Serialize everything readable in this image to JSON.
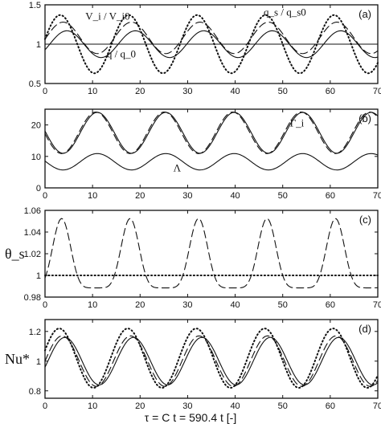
{
  "figure": {
    "xlabel": "τ = C t = 590.4 t [-]"
  },
  "chart_data": [
    {
      "type": "line",
      "panel_tag": "(a)",
      "xlim": [
        0,
        70
      ],
      "ylim": [
        0.5,
        1.5
      ],
      "xticks": [
        0,
        10,
        20,
        30,
        40,
        50,
        60,
        70
      ],
      "yticks": [
        0.5,
        1,
        1.5
      ],
      "ylabel": "",
      "period": 14.4,
      "series": [
        {
          "label": "V_i / V_i0",
          "style": "dotted",
          "mean": 1.0,
          "amp": 0.37,
          "peak_at": 3.2,
          "note_x": 8.5,
          "note_y": 1.31
        },
        {
          "label": "q / q_0",
          "style": "solid",
          "mean": 1.0,
          "amp": 0.17,
          "peak_at": 4.6,
          "note_x": 13,
          "note_y": 0.83
        },
        {
          "label": "q_s / q_s0",
          "style": "dashed",
          "mean": 1.08,
          "amp": 0.2,
          "peak_at": 3.8,
          "note_x": 46,
          "note_y": 1.36
        },
        {
          "label": "",
          "style": "solid",
          "constant": 1.0
        }
      ]
    },
    {
      "type": "line",
      "panel_tag": "(b)",
      "xlim": [
        0,
        70
      ],
      "ylim": [
        0,
        25
      ],
      "xticks": [
        0,
        10,
        20,
        30,
        40,
        50,
        60,
        70
      ],
      "yticks": [
        0,
        10,
        20
      ],
      "ylabel": "",
      "period": 14.4,
      "series": [
        {
          "label": "Γ_i",
          "style": "solid",
          "mean": 17.5,
          "amp": 6.5,
          "peak_at": 11.0,
          "note_x": 51.5,
          "note_y": 19.5
        },
        {
          "label": "",
          "style": "dashed",
          "mean": 17.5,
          "amp": 6.6,
          "peak_at": 10.7
        },
        {
          "label": "Λ",
          "style": "solid",
          "mean": 8.3,
          "amp": 2.6,
          "peak_at": 11.0,
          "note_x": 27,
          "note_y": 5.2
        }
      ]
    },
    {
      "type": "line",
      "panel_tag": "(c)",
      "xlim": [
        0,
        70
      ],
      "ylim": [
        0.98,
        1.06
      ],
      "xticks": [
        0,
        10,
        20,
        30,
        40,
        50,
        60,
        70
      ],
      "yticks": [
        0.98,
        1,
        1.02,
        1.04,
        1.06
      ],
      "ylabel": "θ_s",
      "period": 14.4,
      "series": [
        {
          "label": "",
          "style": "dashed",
          "base": 0.9885,
          "amp": 0.064,
          "peak_at": 3.5
        },
        {
          "label": "",
          "style": "dotted",
          "constant": 1.0
        }
      ]
    },
    {
      "type": "line",
      "panel_tag": "(d)",
      "xlim": [
        0,
        70
      ],
      "ylim": [
        0.75,
        1.28
      ],
      "xticks": [
        0,
        10,
        20,
        30,
        40,
        50,
        60,
        70
      ],
      "yticks": [
        0.8,
        1,
        1.2
      ],
      "ylabel": "Nu*",
      "period": 14.4,
      "series": [
        {
          "label": "",
          "style": "dotted",
          "mean": 1.02,
          "amp": 0.2,
          "peak_at": 3.0
        },
        {
          "label": "",
          "style": "dashed",
          "mean": 1.0,
          "amp": 0.17,
          "peak_at": 3.6
        },
        {
          "label": "",
          "style": "solid",
          "mean": 1.0,
          "amp": 0.16,
          "peak_at": 4.2
        }
      ]
    }
  ]
}
